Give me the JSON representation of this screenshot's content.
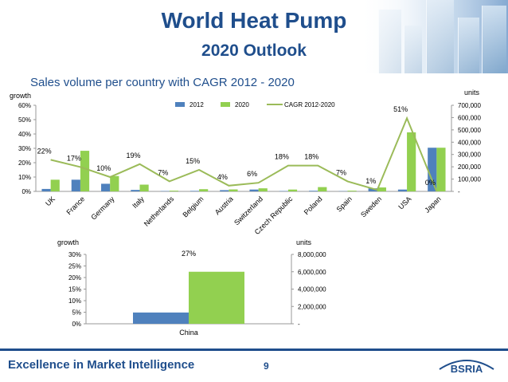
{
  "slide": {
    "title_line1": "World Heat Pump",
    "title_line2": "2020 Outlook",
    "subtitle": "Sales volume per country with CAGR 2012 - 2020",
    "footer_text": "Excellence in Market Intelligence",
    "page_number": "9",
    "logo_text": "BSRIA"
  },
  "colors": {
    "title": "#1f4e8c",
    "series_2012": "#4f81bd",
    "series_2020": "#92d050",
    "cagr_line": "#9bbb59"
  },
  "chart_data": [
    {
      "type": "bar",
      "categories": [
        "UK",
        "France",
        "Germany",
        "Italy",
        "Netherlands",
        "Belgium",
        "Austria",
        "Switzerland",
        "Czech Republic",
        "Poland",
        "Spain",
        "Sweden",
        "USA",
        "Japan"
      ],
      "series": [
        {
          "name": "2012",
          "axis": "units",
          "values": [
            20000,
            95000,
            62000,
            12000,
            3000,
            4000,
            10000,
            15000,
            3000,
            5000,
            2000,
            25000,
            15000,
            355000
          ]
        },
        {
          "name": "2020",
          "axis": "units",
          "values": [
            95000,
            330000,
            125000,
            55000,
            6000,
            18000,
            16000,
            25000,
            15000,
            35000,
            6000,
            32000,
            480000,
            355000
          ]
        },
        {
          "name": "CAGR 2012-2020",
          "type": "line",
          "axis": "growth",
          "values": [
            22,
            17,
            10,
            19,
            7,
            15,
            4,
            6,
            18,
            18,
            7,
            1,
            51,
            0
          ]
        }
      ],
      "data_labels": [
        "22%",
        "17%",
        "10%",
        "19%",
        "7%",
        "15%",
        "4%",
        "6%",
        "18%",
        "18%",
        "7%",
        "1%",
        "51%",
        "0%"
      ],
      "left_axis": {
        "label": "growth",
        "ticks": [
          "0%",
          "10%",
          "20%",
          "30%",
          "40%",
          "50%",
          "60%"
        ],
        "ylim": [
          0,
          60
        ]
      },
      "right_axis": {
        "label": "units",
        "ticks": [
          "-",
          "100,000",
          "200,000",
          "300,000",
          "400,000",
          "500,000",
          "600,000",
          "700,000"
        ],
        "ylim": [
          0,
          700000
        ]
      },
      "legend": {
        "position": "top",
        "entries": [
          "2012",
          "2020",
          "CAGR 2012-2020"
        ]
      }
    },
    {
      "type": "bar",
      "categories": [
        "China"
      ],
      "series": [
        {
          "name": "2012",
          "axis": "units",
          "values": [
            1300000
          ]
        },
        {
          "name": "2020",
          "axis": "units",
          "values": [
            6000000
          ]
        }
      ],
      "data_labels": [
        "27%"
      ],
      "left_axis": {
        "label": "growth",
        "ticks": [
          "0%",
          "5%",
          "10%",
          "15%",
          "20%",
          "25%",
          "30%"
        ],
        "ylim": [
          0,
          30
        ]
      },
      "right_axis": {
        "label": "units",
        "ticks": [
          "-",
          "2,000,000",
          "4,000,000",
          "6,000,000",
          "8,000,000"
        ],
        "ylim": [
          0,
          8000000
        ]
      }
    }
  ]
}
